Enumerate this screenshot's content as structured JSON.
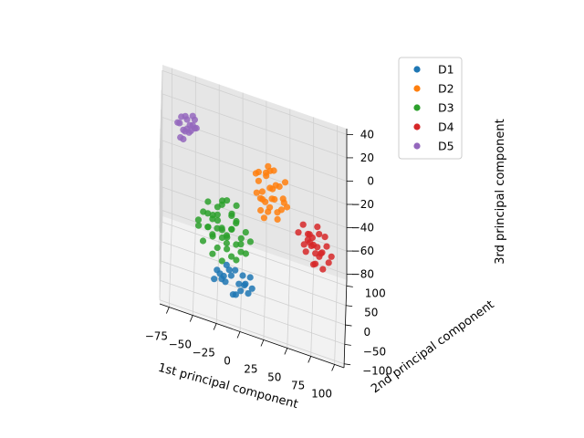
{
  "chart_data": {
    "type": "scatter",
    "projection": "3d",
    "title": "",
    "xlabel": "1st principal component",
    "ylabel": "2nd principal component",
    "zlabel": "3rd principal component",
    "xlim": [
      -85,
      110
    ],
    "ylim": [
      -110,
      115
    ],
    "zlim": [
      -85,
      45
    ],
    "xticks": [
      -75,
      -50,
      -25,
      0,
      25,
      50,
      75,
      100
    ],
    "yticks": [
      -100,
      -50,
      0,
      50,
      100
    ],
    "zticks": [
      -80,
      -60,
      -40,
      -20,
      0,
      20,
      40
    ],
    "grid": true,
    "legend_position": "top-right",
    "series": [
      {
        "name": "D1",
        "color": "#1f77b4",
        "points": [
          [
            -20,
            -60,
            -62
          ],
          [
            -10,
            -55,
            -58
          ],
          [
            0,
            -65,
            -65
          ],
          [
            -15,
            -50,
            -52
          ],
          [
            5,
            -58,
            -60
          ],
          [
            -25,
            -62,
            -55
          ],
          [
            -5,
            -70,
            -68
          ],
          [
            10,
            -52,
            -55
          ],
          [
            -18,
            -48,
            -63
          ],
          [
            -8,
            -60,
            -72
          ],
          [
            2,
            -45,
            -58
          ],
          [
            -12,
            -66,
            -50
          ],
          [
            8,
            -62,
            -66
          ],
          [
            -22,
            -54,
            -60
          ],
          [
            -2,
            -52,
            -64
          ],
          [
            12,
            -58,
            -62
          ],
          [
            -16,
            -70,
            -60
          ],
          [
            -6,
            -44,
            -56
          ],
          [
            4,
            -68,
            -58
          ],
          [
            -28,
            -58,
            -65
          ]
        ]
      },
      {
        "name": "D2",
        "color": "#ff7f0e",
        "points": [
          [
            20,
            10,
            -5
          ],
          [
            30,
            15,
            5
          ],
          [
            25,
            20,
            -10
          ],
          [
            35,
            5,
            0
          ],
          [
            15,
            25,
            10
          ],
          [
            28,
            12,
            -15
          ],
          [
            40,
            18,
            8
          ],
          [
            22,
            8,
            2
          ],
          [
            32,
            28,
            -8
          ],
          [
            18,
            16,
            15
          ],
          [
            38,
            10,
            -12
          ],
          [
            26,
            22,
            12
          ],
          [
            45,
            14,
            -3
          ],
          [
            24,
            2,
            -18
          ],
          [
            34,
            24,
            18
          ],
          [
            30,
            -2,
            -6
          ],
          [
            42,
            26,
            -14
          ],
          [
            16,
            12,
            -2
          ],
          [
            36,
            30,
            4
          ],
          [
            28,
            18,
            22
          ],
          [
            48,
            20,
            -8
          ],
          [
            22,
            30,
            -12
          ],
          [
            33,
            0,
            10
          ],
          [
            44,
            8,
            2
          ],
          [
            20,
            24,
            -20
          ],
          [
            30,
            32,
            14
          ],
          [
            38,
            16,
            -20
          ],
          [
            26,
            6,
            20
          ],
          [
            46,
            22,
            12
          ],
          [
            18,
            20,
            6
          ]
        ]
      },
      {
        "name": "D3",
        "color": "#2ca02c",
        "points": [
          [
            -30,
            -40,
            -20
          ],
          [
            -20,
            -30,
            -30
          ],
          [
            -10,
            -35,
            -25
          ],
          [
            -25,
            -20,
            -15
          ],
          [
            -15,
            -45,
            -35
          ],
          [
            -5,
            -25,
            -20
          ],
          [
            -35,
            -35,
            -30
          ],
          [
            0,
            -40,
            -40
          ],
          [
            -20,
            -15,
            -10
          ],
          [
            -30,
            -25,
            -40
          ],
          [
            -10,
            -20,
            -30
          ],
          [
            -25,
            -45,
            -25
          ],
          [
            5,
            -30,
            -25
          ],
          [
            -40,
            -30,
            -20
          ],
          [
            -15,
            -30,
            -45
          ],
          [
            -5,
            -45,
            -15
          ],
          [
            -20,
            -40,
            -5
          ],
          [
            -35,
            -20,
            -35
          ],
          [
            -10,
            -10,
            -20
          ],
          [
            -25,
            -35,
            -45
          ],
          [
            0,
            -20,
            -35
          ],
          [
            -30,
            -50,
            -30
          ],
          [
            -15,
            -25,
            -5
          ],
          [
            -45,
            -40,
            -25
          ],
          [
            -5,
            -35,
            -50
          ],
          [
            10,
            -35,
            -30
          ],
          [
            -20,
            -55,
            -20
          ],
          [
            -30,
            -15,
            -25
          ],
          [
            -10,
            -45,
            -45
          ],
          [
            -25,
            -10,
            -30
          ],
          [
            -40,
            -45,
            -40
          ],
          [
            0,
            -50,
            -30
          ],
          [
            -15,
            -15,
            -40
          ],
          [
            -35,
            -30,
            -10
          ],
          [
            5,
            -25,
            -45
          ],
          [
            -20,
            -35,
            -55
          ],
          [
            -45,
            -25,
            -35
          ],
          [
            -5,
            -15,
            -10
          ],
          [
            -30,
            -40,
            -50
          ],
          [
            -10,
            -30,
            -15
          ],
          [
            -25,
            -25,
            -20
          ],
          [
            -15,
            -40,
            -30
          ],
          [
            -20,
            -20,
            -40
          ],
          [
            -5,
            -40,
            -35
          ],
          [
            -35,
            -45,
            -15
          ]
        ]
      },
      {
        "name": "D4",
        "color": "#d62728",
        "points": [
          [
            70,
            20,
            -30
          ],
          [
            80,
            25,
            -35
          ],
          [
            75,
            15,
            -25
          ],
          [
            85,
            30,
            -40
          ],
          [
            65,
            25,
            -20
          ],
          [
            78,
            10,
            -45
          ],
          [
            90,
            20,
            -30
          ],
          [
            72,
            30,
            -35
          ],
          [
            82,
            15,
            -20
          ],
          [
            68,
            18,
            -40
          ],
          [
            88,
            28,
            -25
          ],
          [
            76,
            22,
            -50
          ],
          [
            84,
            12,
            -35
          ],
          [
            70,
            35,
            -30
          ],
          [
            92,
            25,
            -45
          ],
          [
            74,
            8,
            -30
          ],
          [
            80,
            32,
            -20
          ],
          [
            86,
            18,
            -50
          ],
          [
            66,
            20,
            -35
          ],
          [
            78,
            28,
            -42
          ],
          [
            60,
            25,
            -28
          ],
          [
            95,
            22,
            -38
          ],
          [
            72,
            12,
            -22
          ],
          [
            82,
            35,
            -46
          ],
          [
            76,
            18,
            -32
          ]
        ]
      },
      {
        "name": "D5",
        "color": "#9467bd",
        "points": [
          [
            -60,
            40,
            20
          ],
          [
            -55,
            45,
            25
          ],
          [
            -65,
            35,
            15
          ],
          [
            -50,
            50,
            22
          ],
          [
            -58,
            42,
            30
          ],
          [
            -62,
            48,
            18
          ],
          [
            -52,
            38,
            28
          ],
          [
            -68,
            44,
            24
          ],
          [
            -56,
            52,
            16
          ],
          [
            -48,
            40,
            26
          ],
          [
            -64,
            38,
            32
          ],
          [
            -54,
            46,
            20
          ],
          [
            -60,
            55,
            28
          ],
          [
            -66,
            50,
            22
          ],
          [
            -52,
            44,
            34
          ],
          [
            -58,
            36,
            24
          ],
          [
            -62,
            42,
            12
          ],
          [
            -50,
            48,
            30
          ]
        ]
      }
    ]
  }
}
